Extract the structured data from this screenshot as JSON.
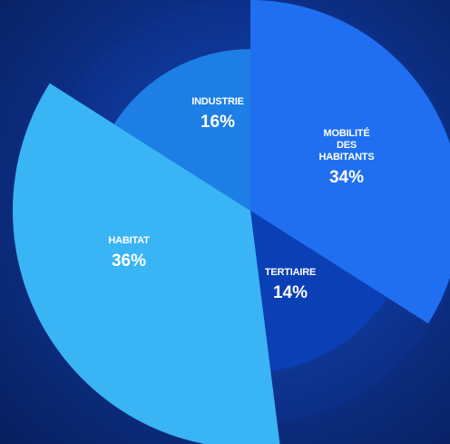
{
  "chart_data": {
    "type": "pie",
    "slices": [
      {
        "label": [
          "MOBILITÉ",
          "DES",
          "HABITANTS"
        ],
        "value": 34,
        "display": "34%",
        "color": "#1f6ff0"
      },
      {
        "label": [
          "TERTIAIRE"
        ],
        "value": 14,
        "display": "14%",
        "color": "#0b3fb5"
      },
      {
        "label": [
          "HABITAT"
        ],
        "value": 36,
        "display": "36%",
        "color": "#39b4f5"
      },
      {
        "label": [
          "INDUSTRIE"
        ],
        "value": 16,
        "display": "16%",
        "color": "#1d7fe6"
      }
    ]
  }
}
